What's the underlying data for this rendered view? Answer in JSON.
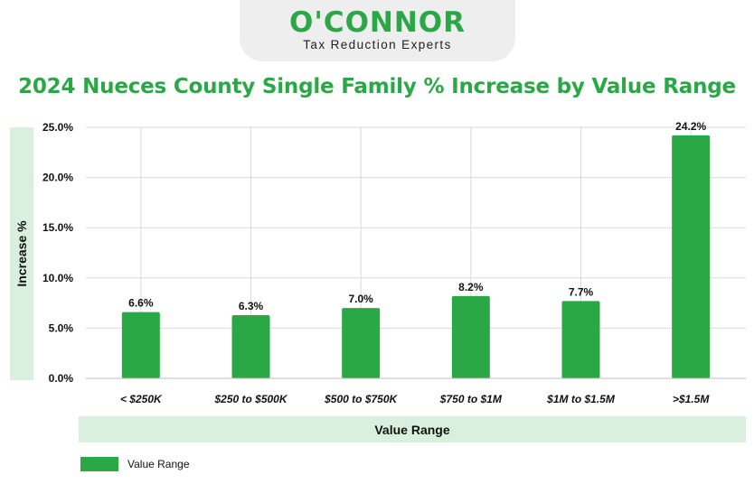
{
  "logo": {
    "name": "O'CONNOR",
    "tagline": "Tax Reduction Experts"
  },
  "colors": {
    "brand_green": "#2aa846",
    "label_band": "#d8f0dd"
  },
  "chart_data": {
    "type": "bar",
    "title": "2024 Nueces County Single Family % Increase by Value Range",
    "xlabel": "Value Range",
    "ylabel": "Increase %",
    "categories": [
      "< $250K",
      "$250 to $500K",
      "$500 to $750K",
      "$750 to $1M",
      "$1M to $1.5M",
      ">$1.5M"
    ],
    "series": [
      {
        "name": "Value Range",
        "values": [
          6.6,
          6.3,
          7.0,
          8.2,
          7.7,
          24.2
        ],
        "labels": [
          "6.6%",
          "6.3%",
          "7.0%",
          "8.2%",
          "7.7%",
          "24.2%"
        ]
      }
    ],
    "ylim": [
      0,
      25
    ],
    "yticks": [
      0,
      5,
      10,
      15,
      20,
      25
    ],
    "ytick_labels": [
      "0.0%",
      "5.0%",
      "10.0%",
      "15.0%",
      "20.0%",
      "25.0%"
    ],
    "grid": true,
    "legend": "bottom-left",
    "bar_color": "#2aa846"
  }
}
